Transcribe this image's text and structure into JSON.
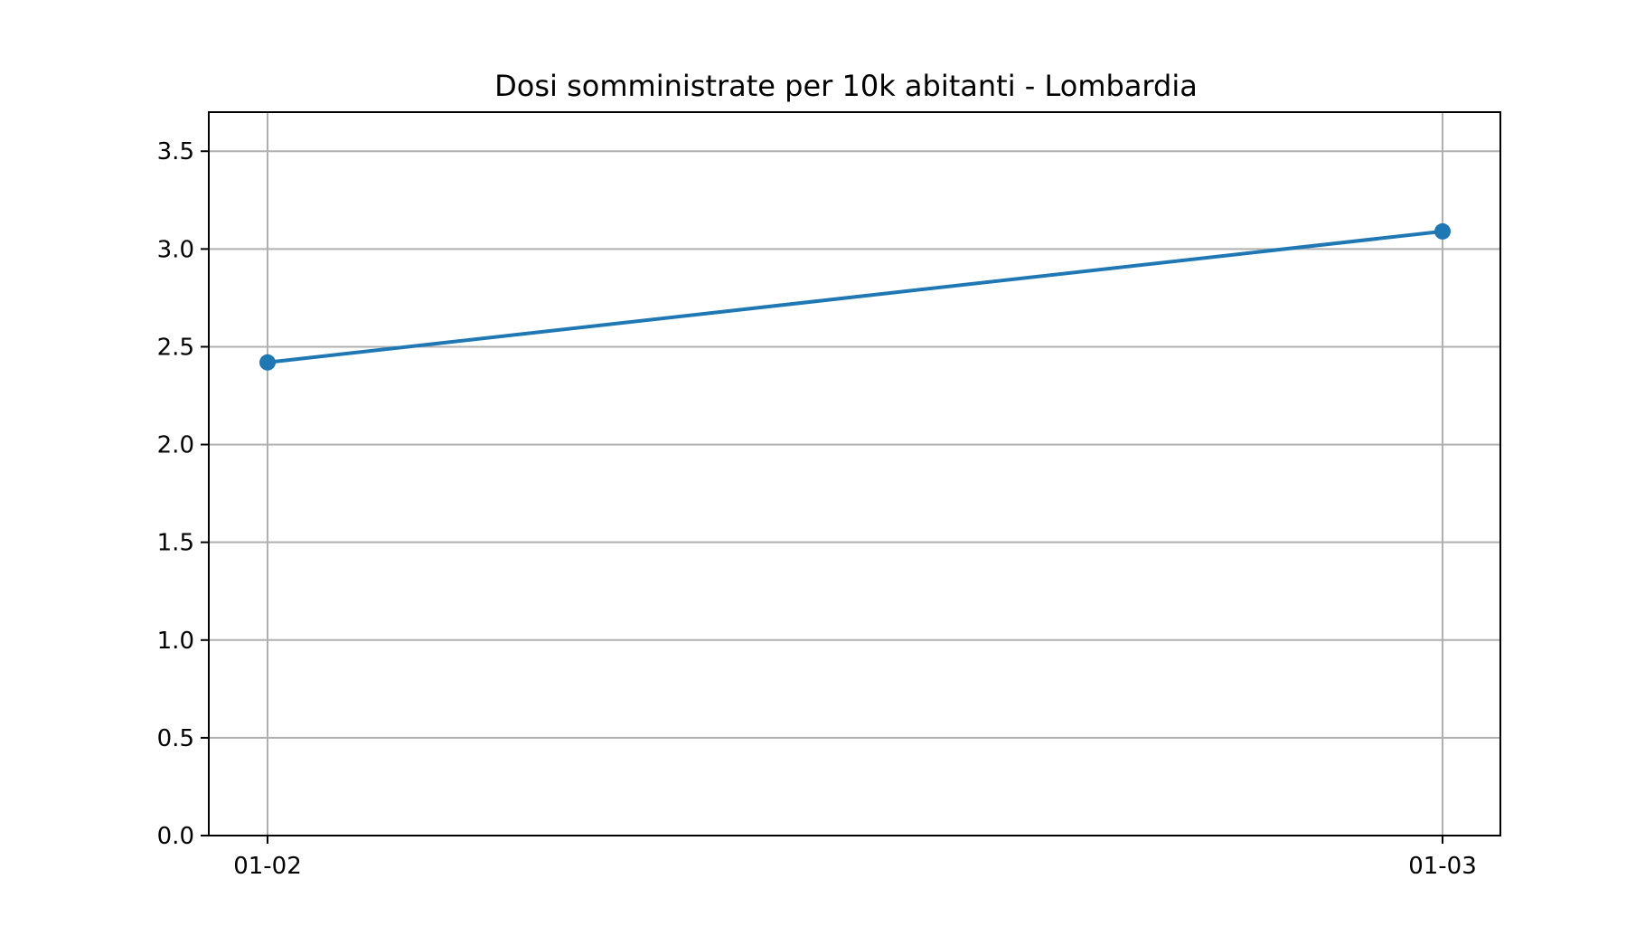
{
  "chart_data": {
    "type": "line",
    "title": "Dosi somministrate per 10k abitanti - Lombardia",
    "xlabel": "",
    "ylabel": "",
    "x": [
      "01-02",
      "01-03"
    ],
    "series": [
      {
        "values": [
          2.42,
          3.09
        ],
        "color": "#1f77b4",
        "marker": "circle"
      }
    ],
    "ylim": [
      0,
      3.7
    ],
    "yticks": [
      0.0,
      0.5,
      1.0,
      1.5,
      2.0,
      2.5,
      3.0,
      3.5
    ],
    "ytick_labels": [
      "0.0",
      "0.5",
      "1.0",
      "1.5",
      "2.0",
      "2.5",
      "3.0",
      "3.5"
    ],
    "grid": true,
    "legend": "none"
  }
}
